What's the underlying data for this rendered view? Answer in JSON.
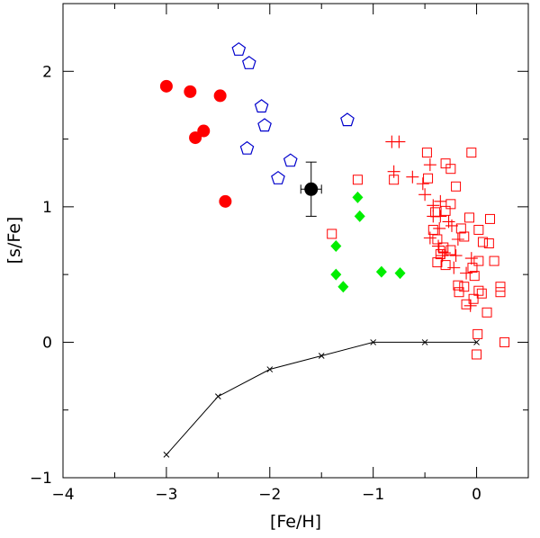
{
  "chart_data": {
    "type": "scatter",
    "title": "",
    "xlabel": "[Fe/H]",
    "ylabel": "[s/Fe]",
    "xlim": [
      -4,
      0.5
    ],
    "ylim": [
      -1,
      2.5
    ],
    "xticks": [
      -4,
      -3,
      -2,
      -1,
      0
    ],
    "yticks": [
      -1,
      0,
      1,
      2
    ],
    "xtick_labels": [
      "−4",
      "−3",
      "−2",
      "−1",
      "0"
    ],
    "ytick_labels": [
      "−1",
      "0",
      "1",
      "2"
    ],
    "grid": false,
    "colors": {
      "red": "#ff0000",
      "blue": "#0000cc",
      "green": "#00ee00",
      "black": "#000000"
    },
    "series": [
      {
        "name": "red filled circles",
        "marker": "circle-filled",
        "color": "#ff0000",
        "points": [
          [
            -3.0,
            1.89
          ],
          [
            -2.77,
            1.85
          ],
          [
            -2.48,
            1.82
          ],
          [
            -2.64,
            1.56
          ],
          [
            -2.72,
            1.51
          ],
          [
            -2.43,
            1.04
          ]
        ]
      },
      {
        "name": "blue open pentagons",
        "marker": "pentagon-open",
        "color": "#0000cc",
        "points": [
          [
            -2.3,
            2.16
          ],
          [
            -2.2,
            2.06
          ],
          [
            -2.08,
            1.74
          ],
          [
            -2.05,
            1.6
          ],
          [
            -1.25,
            1.64
          ],
          [
            -2.22,
            1.43
          ],
          [
            -1.8,
            1.34
          ],
          [
            -1.92,
            1.21
          ]
        ]
      },
      {
        "name": "green filled diamonds",
        "marker": "diamond-filled",
        "color": "#00ee00",
        "points": [
          [
            -1.15,
            1.07
          ],
          [
            -1.13,
            0.93
          ],
          [
            -1.36,
            0.71
          ],
          [
            -1.36,
            0.5
          ],
          [
            -1.29,
            0.41
          ],
          [
            -0.92,
            0.52
          ],
          [
            -0.74,
            0.51
          ]
        ]
      },
      {
        "name": "red plus signs",
        "marker": "plus",
        "color": "#ff0000",
        "points": [
          [
            -0.82,
            1.48
          ],
          [
            -0.75,
            1.48
          ],
          [
            -0.8,
            1.26
          ],
          [
            -0.62,
            1.22
          ],
          [
            -0.52,
            1.17
          ],
          [
            -0.5,
            1.09
          ],
          [
            -0.42,
            1.01
          ],
          [
            -0.35,
            1.04
          ],
          [
            -0.42,
            0.93
          ],
          [
            -0.35,
            0.93
          ],
          [
            -0.27,
            0.89
          ],
          [
            -0.36,
            0.84
          ],
          [
            -0.24,
            0.86
          ],
          [
            -0.45,
            0.77
          ],
          [
            -0.37,
            0.71
          ],
          [
            -0.18,
            0.76
          ],
          [
            -0.31,
            0.66
          ],
          [
            -0.2,
            0.64
          ],
          [
            -0.05,
            0.62
          ],
          [
            -0.22,
            0.55
          ],
          [
            -0.1,
            0.51
          ],
          [
            -0.06,
            0.27
          ],
          [
            -0.33,
            0.64
          ],
          [
            -0.45,
            1.31
          ]
        ]
      },
      {
        "name": "red open squares",
        "marker": "square-open",
        "color": "#ff0000",
        "points": [
          [
            -1.15,
            1.2
          ],
          [
            -0.8,
            1.2
          ],
          [
            -1.4,
            0.8
          ],
          [
            -0.48,
            1.4
          ],
          [
            -0.3,
            1.32
          ],
          [
            -0.25,
            1.28
          ],
          [
            -0.05,
            1.4
          ],
          [
            -0.47,
            1.21
          ],
          [
            -0.2,
            1.15
          ],
          [
            -0.25,
            1.02
          ],
          [
            -0.4,
            0.96
          ],
          [
            -0.3,
            0.97
          ],
          [
            -0.07,
            0.92
          ],
          [
            0.13,
            0.91
          ],
          [
            -0.42,
            0.83
          ],
          [
            -0.15,
            0.84
          ],
          [
            0.02,
            0.83
          ],
          [
            -0.38,
            0.76
          ],
          [
            -0.12,
            0.78
          ],
          [
            0.06,
            0.74
          ],
          [
            0.12,
            0.73
          ],
          [
            -0.32,
            0.7
          ],
          [
            -0.25,
            0.68
          ],
          [
            -0.35,
            0.65
          ],
          [
            -0.38,
            0.59
          ],
          [
            -0.3,
            0.57
          ],
          [
            0.02,
            0.6
          ],
          [
            0.17,
            0.6
          ],
          [
            -0.04,
            0.55
          ],
          [
            -0.02,
            0.49
          ],
          [
            -0.18,
            0.42
          ],
          [
            -0.12,
            0.41
          ],
          [
            0.02,
            0.38
          ],
          [
            0.23,
            0.41
          ],
          [
            -0.03,
            0.32
          ],
          [
            -0.17,
            0.37
          ],
          [
            0.05,
            0.36
          ],
          [
            0.23,
            0.37
          ],
          [
            -0.1,
            0.28
          ],
          [
            0.1,
            0.22
          ],
          [
            0.01,
            0.06
          ],
          [
            0.27,
            0.0
          ],
          [
            0.0,
            -0.09
          ]
        ]
      },
      {
        "name": "black point with error bars",
        "marker": "circle-filled",
        "color": "#000000",
        "points": [
          [
            -1.6,
            1.13
          ]
        ],
        "xerr": 0.1,
        "yerr": 0.2
      },
      {
        "name": "model line",
        "marker": "x",
        "color": "#000000",
        "line": true,
        "points": [
          [
            -3.0,
            -0.83
          ],
          [
            -2.5,
            -0.4
          ],
          [
            -2.0,
            -0.2
          ],
          [
            -1.5,
            -0.1
          ],
          [
            -1.0,
            0.0
          ],
          [
            -0.5,
            0.0
          ],
          [
            0.0,
            0.0
          ]
        ]
      }
    ]
  }
}
